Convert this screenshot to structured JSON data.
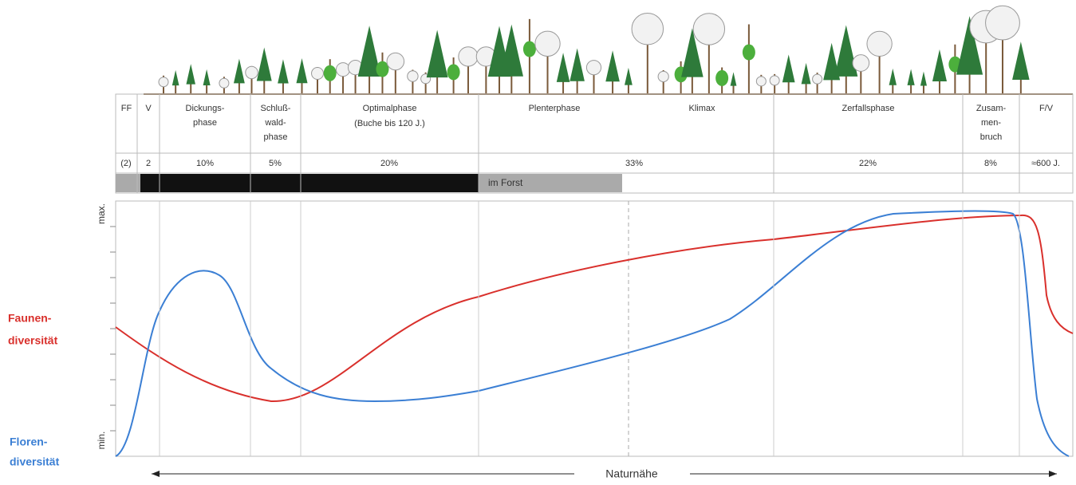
{
  "phases": [
    {
      "lines": [
        "FF"
      ]
    },
    {
      "lines": [
        "V"
      ]
    },
    {
      "lines": [
        "Dickungs-",
        "phase"
      ]
    },
    {
      "lines": [
        "Schluß-",
        "wald-",
        "phase"
      ]
    },
    {
      "lines": [
        "Optimalphase",
        "(Buche bis 120 J.)"
      ]
    },
    {
      "lines": [
        "Plenterphase"
      ]
    },
    {
      "lines": [
        "Klimax"
      ]
    },
    {
      "lines": [
        "Zerfallsphase"
      ]
    },
    {
      "lines": [
        "Zusam-",
        "men-",
        "bruch"
      ]
    },
    {
      "lines": [
        "F/V"
      ]
    }
  ],
  "shares": [
    "(2)",
    "2",
    "10%",
    "5%",
    "20%",
    "33%",
    "22%",
    "8%",
    "≈600 J."
  ],
  "bar_label": "im Forst",
  "y_axis": {
    "max": "max.",
    "min": "min."
  },
  "curves": [
    {
      "name": [
        "Faunen-",
        "diversität"
      ],
      "color": "#d9302c"
    },
    {
      "name": [
        "Floren-",
        "diversität"
      ],
      "color": "#3b7fd4"
    }
  ],
  "x_axis_label": "Naturnähe"
}
